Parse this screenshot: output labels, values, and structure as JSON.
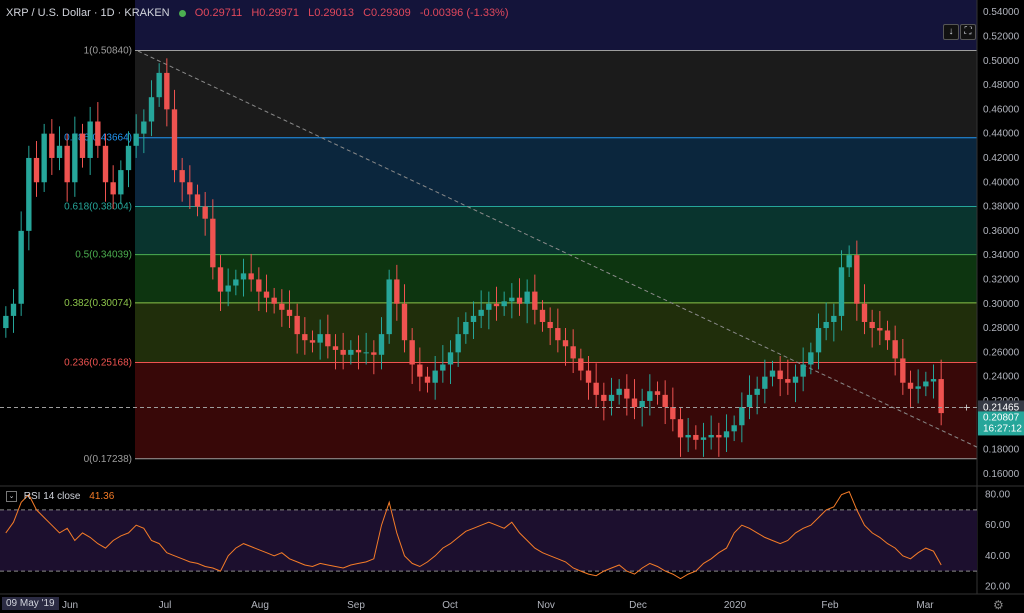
{
  "header": {
    "symbol": "XRP / U.S. Dollar · 1D · KRAKEN",
    "open": "O0.29711",
    "high": "H0.29971",
    "low": "L0.29013",
    "close": "C0.29309",
    "change": "-0.00396 (-1.33%)"
  },
  "buttons": {
    "scroll_down_icon": "arrow-down-icon",
    "fullscreen_icon": "fullscreen-icon",
    "scroll_down_glyph": "↓",
    "fullscreen_glyph": "⛶"
  },
  "colors": {
    "up": "#26a69a",
    "down": "#ef5350",
    "rsi": "#f57c28",
    "last_price_bg": "#26a69a"
  },
  "price_labels": {
    "crosshair_price": "0.21465",
    "last_price": "0.20807",
    "countdown": "16:27:12"
  },
  "rsi": {
    "label": "RSI 14 close",
    "value": "41.36",
    "box_glyph": "⌄"
  },
  "date_badge": "09 May '19",
  "gear_glyph": "⚙",
  "chart_data": [
    {
      "type": "candlestick",
      "ylim": [
        0.15,
        0.55
      ],
      "y_ticks": [
        "0.54000",
        "0.52000",
        "0.50000",
        "0.48000",
        "0.46000",
        "0.44000",
        "0.42000",
        "0.40000",
        "0.38000",
        "0.36000",
        "0.34000",
        "0.32000",
        "0.30000",
        "0.28000",
        "0.26000",
        "0.24000",
        "0.22000",
        "0.20000",
        "0.18000",
        "0.16000"
      ],
      "x_ticks": [
        "Jun",
        "Jul",
        "Aug",
        "Sep",
        "Oct",
        "Nov",
        "Dec",
        "2020",
        "Feb",
        "Mar"
      ],
      "fib_levels": [
        {
          "label": "1(0.50840)",
          "value": 0.5084,
          "color": "#9e9e9e",
          "fill": "#1e1e1e"
        },
        {
          "label": "0.786(0.43664)",
          "value": 0.43664,
          "color": "#2196f3",
          "fill": "#0c2a44"
        },
        {
          "label": "0.618(0.38004)",
          "value": 0.38004,
          "color": "#26a69a",
          "fill": "#0a3a33"
        },
        {
          "label": "0.5(0.34039)",
          "value": 0.34039,
          "color": "#4caf50",
          "fill": "#0e3b12"
        },
        {
          "label": "0.382(0.30074)",
          "value": 0.30074,
          "color": "#8bc34a",
          "fill": "#24330c"
        },
        {
          "label": "0.236(0.25168)",
          "value": 0.25168,
          "color": "#ef5350",
          "fill": "#3e0909"
        },
        {
          "label": "0(0.17238)",
          "value": 0.17238,
          "color": "#9e9e9e",
          "fill": null
        }
      ],
      "close_series": [
        0.29,
        0.3,
        0.36,
        0.42,
        0.4,
        0.44,
        0.42,
        0.43,
        0.4,
        0.44,
        0.42,
        0.45,
        0.43,
        0.4,
        0.39,
        0.41,
        0.43,
        0.44,
        0.45,
        0.47,
        0.49,
        0.46,
        0.41,
        0.4,
        0.39,
        0.38,
        0.37,
        0.33,
        0.31,
        0.315,
        0.32,
        0.325,
        0.32,
        0.31,
        0.305,
        0.3,
        0.295,
        0.29,
        0.275,
        0.27,
        0.268,
        0.275,
        0.265,
        0.262,
        0.258,
        0.262,
        0.26,
        0.26,
        0.258,
        0.275,
        0.32,
        0.3,
        0.27,
        0.25,
        0.24,
        0.235,
        0.245,
        0.25,
        0.26,
        0.275,
        0.285,
        0.29,
        0.295,
        0.3,
        0.298,
        0.302,
        0.305,
        0.3,
        0.31,
        0.295,
        0.285,
        0.28,
        0.27,
        0.265,
        0.255,
        0.245,
        0.235,
        0.225,
        0.22,
        0.225,
        0.23,
        0.222,
        0.215,
        0.22,
        0.228,
        0.225,
        0.215,
        0.205,
        0.19,
        0.192,
        0.188,
        0.19,
        0.192,
        0.19,
        0.195,
        0.2,
        0.215,
        0.225,
        0.23,
        0.24,
        0.245,
        0.238,
        0.235,
        0.24,
        0.25,
        0.26,
        0.28,
        0.285,
        0.29,
        0.33,
        0.34,
        0.3,
        0.285,
        0.28,
        0.278,
        0.27,
        0.255,
        0.235,
        0.23,
        0.232,
        0.236,
        0.238,
        0.21
      ],
      "rsi_ylim": [
        15,
        85
      ],
      "rsi_ticks": [
        "80.00",
        "60.00",
        "40.00",
        "20.00"
      ],
      "rsi_bands": [
        70,
        30
      ],
      "rsi_series": [
        55,
        62,
        75,
        80,
        70,
        65,
        60,
        55,
        58,
        50,
        55,
        52,
        48,
        45,
        50,
        53,
        55,
        60,
        58,
        50,
        48,
        42,
        40,
        38,
        36,
        35,
        33,
        32,
        30,
        40,
        45,
        48,
        46,
        44,
        42,
        40,
        42,
        38,
        36,
        34,
        33,
        35,
        34,
        33,
        32,
        34,
        35,
        36,
        38,
        60,
        75,
        55,
        40,
        35,
        33,
        36,
        40,
        45,
        48,
        52,
        56,
        58,
        60,
        62,
        60,
        58,
        62,
        55,
        50,
        45,
        42,
        40,
        38,
        36,
        32,
        30,
        28,
        27,
        30,
        32,
        34,
        30,
        28,
        32,
        35,
        33,
        30,
        28,
        25,
        28,
        30,
        35,
        38,
        42,
        45,
        55,
        60,
        58,
        55,
        52,
        50,
        48,
        50,
        55,
        58,
        60,
        65,
        70,
        72,
        80,
        82,
        70,
        60,
        55,
        52,
        48,
        45,
        40,
        38,
        42,
        45,
        43,
        34
      ]
    }
  ]
}
